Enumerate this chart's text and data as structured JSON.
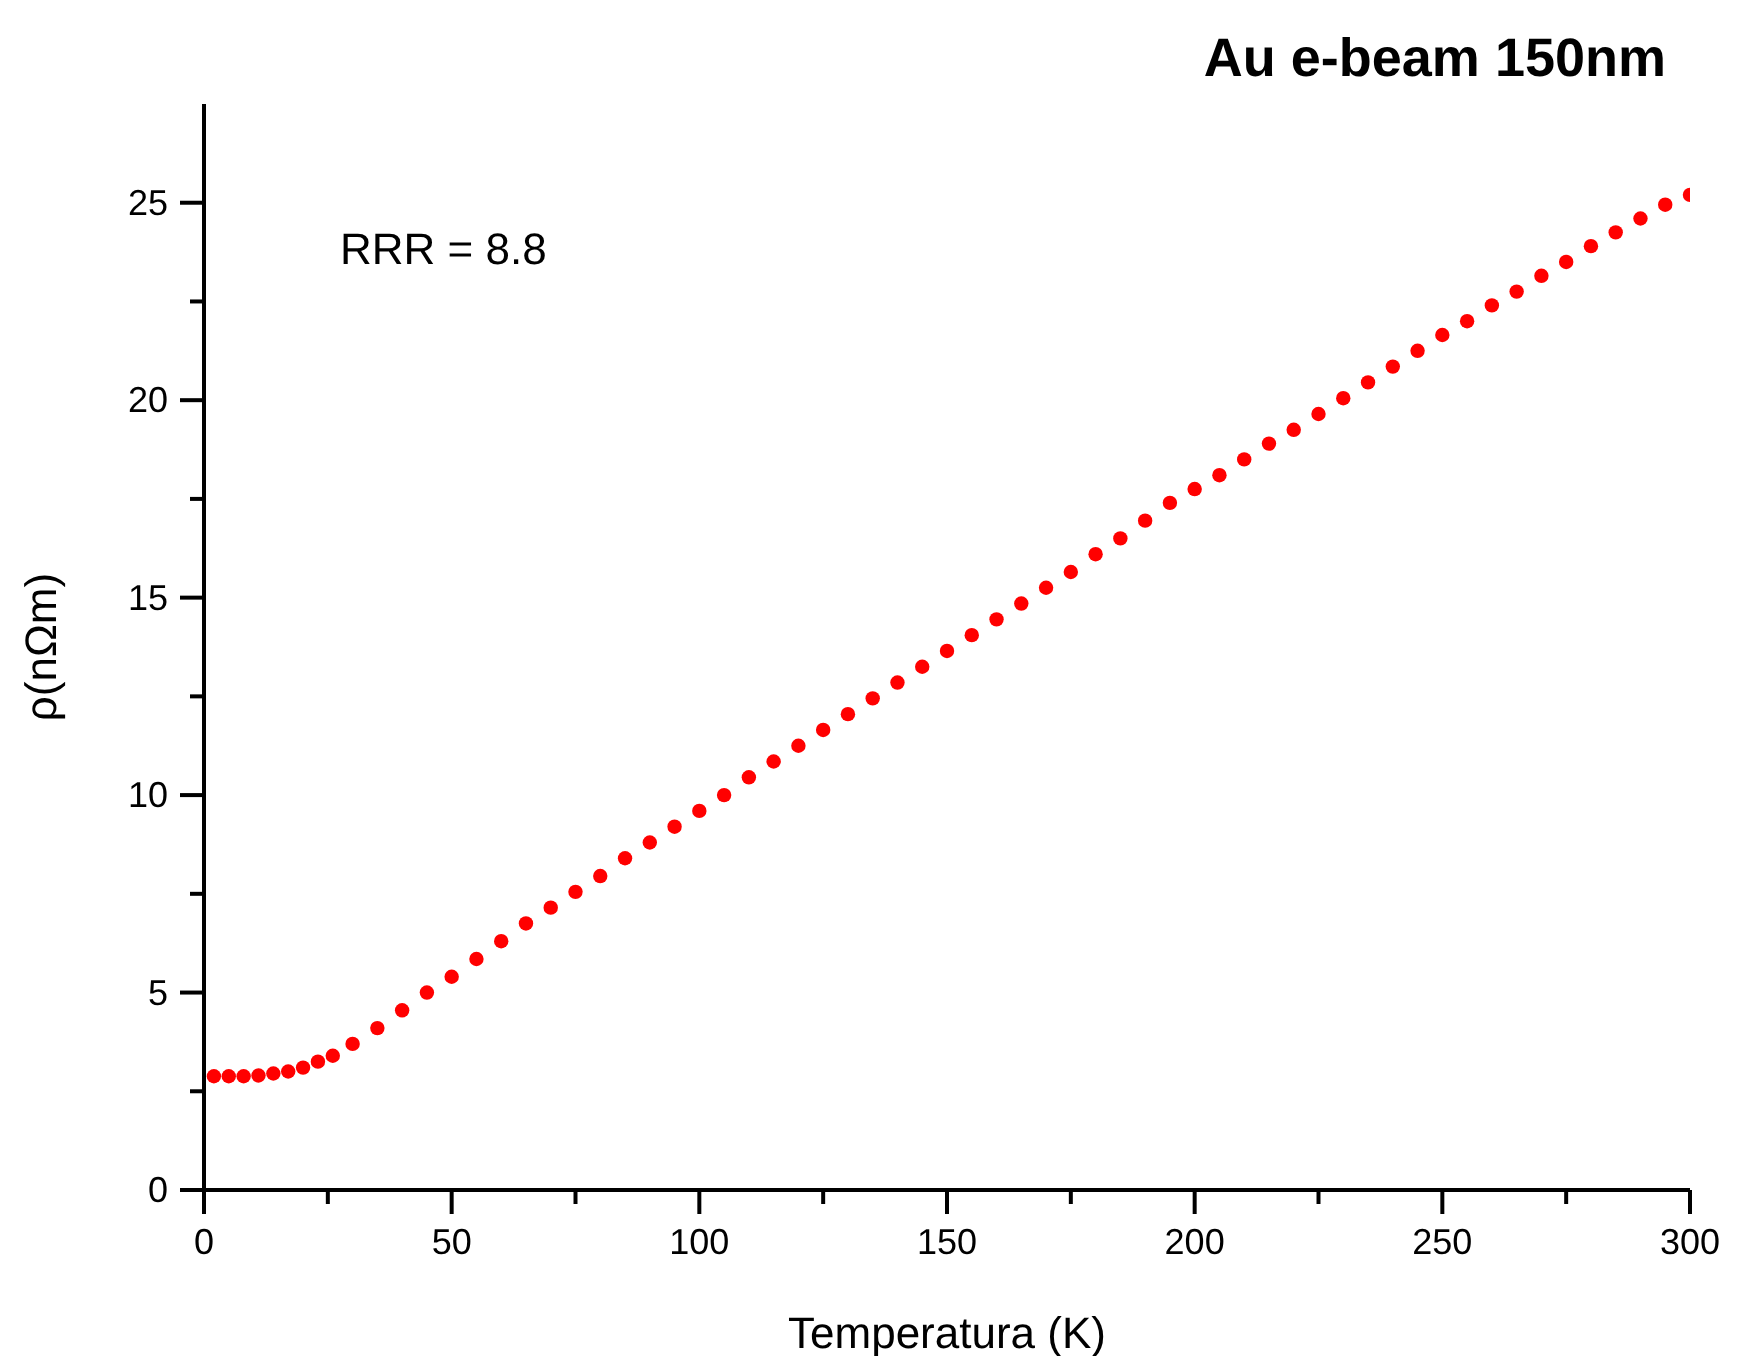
{
  "chart_data": {
    "type": "scatter",
    "title": "Au e-beam 150nm",
    "xlabel": "Temperatura (K)",
    "ylabel": "ρ(nΩm)",
    "annotations": [
      "RRR = 8.8"
    ],
    "x": [
      2,
      5,
      8,
      11,
      14,
      17,
      20,
      23,
      26,
      30,
      35,
      40,
      45,
      50,
      55,
      60,
      65,
      70,
      75,
      80,
      85,
      90,
      95,
      100,
      105,
      110,
      115,
      120,
      125,
      130,
      135,
      140,
      145,
      150,
      155,
      160,
      165,
      170,
      175,
      180,
      185,
      190,
      195,
      200,
      205,
      210,
      215,
      220,
      225,
      230,
      235,
      240,
      245,
      250,
      255,
      260,
      265,
      270,
      275,
      280,
      285,
      290,
      295,
      300
    ],
    "series": [
      {
        "color": "#ff0000",
        "values": [
          2.88,
          2.88,
          2.88,
          2.9,
          2.95,
          3.0,
          3.1,
          3.25,
          3.4,
          3.7,
          4.1,
          4.55,
          5.0,
          5.4,
          5.85,
          6.3,
          6.75,
          7.15,
          7.55,
          7.95,
          8.4,
          8.8,
          9.2,
          9.6,
          10.0,
          10.45,
          10.85,
          11.25,
          11.65,
          12.05,
          12.45,
          12.85,
          13.25,
          13.65,
          14.05,
          14.45,
          14.85,
          15.25,
          15.65,
          16.1,
          16.5,
          16.95,
          17.4,
          17.75,
          18.1,
          18.5,
          18.9,
          19.25,
          19.65,
          20.05,
          20.45,
          20.85,
          21.25,
          21.65,
          22.0,
          22.4,
          22.75,
          23.15,
          23.5,
          23.9,
          24.25,
          24.6,
          24.95,
          25.2
        ]
      }
    ],
    "marker": "circle",
    "xlim": [
      0,
      300
    ],
    "xticks": [
      0,
      {
        "value": 25,
        "label": null
      },
      50,
      {
        "value": 75,
        "label": null
      },
      100,
      {
        "value": 125,
        "label": null
      },
      150,
      {
        "value": 175,
        "label": null
      },
      200,
      {
        "value": 225,
        "label": null
      },
      250,
      {
        "value": 275,
        "label": null
      },
      300
    ],
    "ylim": [
      0,
      27.5
    ],
    "yticks": [
      0,
      {
        "value": 2.5,
        "label": null
      },
      5,
      {
        "value": 7.5,
        "label": null
      },
      10,
      {
        "value": 12.5,
        "label": null
      },
      15,
      {
        "value": 17.5,
        "label": null
      },
      20,
      {
        "value": 22.5,
        "label": null
      },
      25
    ]
  }
}
